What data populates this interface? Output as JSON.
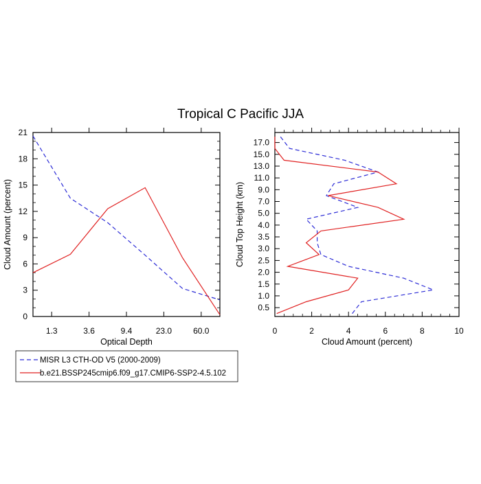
{
  "title": "Tropical C Pacific JJA",
  "colors": {
    "obs": "#2b2bd6",
    "model": "#e02020",
    "axis": "#000000"
  },
  "legend": {
    "entries": [
      {
        "label": "MISR L3 CTH-OD V5 (2000-2009)",
        "color": "#2b2bd6",
        "dash": "dashed"
      },
      {
        "label": "b.e21.BSSP245cmip6.f09_g17.CMIP6-SSP2-4.5.102",
        "color": "#e02020",
        "dash": "solid"
      }
    ]
  },
  "chart_data": [
    {
      "type": "line",
      "xlabel": "Optical Depth",
      "ylabel": "Cloud Amount (percent)",
      "categories": [
        "1.3",
        "3.6",
        "9.4",
        "23.0",
        "60.0"
      ],
      "x_index_range": [
        0,
        5
      ],
      "ylim": [
        0,
        21
      ],
      "yticks": [
        "0",
        "3",
        "6",
        "9",
        "12",
        "15",
        "18",
        "21"
      ],
      "series": [
        {
          "name": "MISR L3 CTH-OD V5 (2000-2009)",
          "style": "dashed",
          "color": "#2b2bd6",
          "x": [
            0,
            1,
            2,
            3,
            4,
            5
          ],
          "y": [
            20.6,
            13.5,
            10.7,
            7.0,
            3.2,
            1.9
          ]
        },
        {
          "name": "b.e21.BSSP245cmip6.f09_g17.CMIP6-SSP2-4.5.102",
          "style": "solid",
          "color": "#e02020",
          "x": [
            0,
            1,
            2,
            3,
            4,
            5
          ],
          "y": [
            5.0,
            7.1,
            12.3,
            14.7,
            6.7,
            0.2
          ]
        }
      ]
    },
    {
      "type": "line",
      "xlabel": "Cloud Amount (percent)",
      "ylabel": "Cloud Top Height (km)",
      "xlim": [
        0,
        10
      ],
      "xticks": [
        "0",
        "2",
        "4",
        "6",
        "8",
        "10"
      ],
      "ylevels": [
        "0.5",
        "1.0",
        "1.5",
        "2.0",
        "2.5",
        "3.0",
        "3.5",
        "4.0",
        "5.0",
        "7.0",
        "9.0",
        "11.0",
        "13.0",
        "15.0",
        "17.0"
      ],
      "series": [
        {
          "name": "MISR L3 CTH-OD V5 (2000-2009)",
          "style": "dashed",
          "color": "#2b2bd6",
          "level_index": [
            -0.5,
            0.5,
            1.5,
            2.5,
            3.5,
            4.5,
            5.5,
            6.5,
            7.5,
            8.5,
            9.5,
            10.5,
            11.5,
            12.5,
            13.5,
            14.5
          ],
          "cloud_amount": [
            4.2,
            4.7,
            8.6,
            7.0,
            4.0,
            2.5,
            2.3,
            2.3,
            1.7,
            4.5,
            2.8,
            3.2,
            5.6,
            3.8,
            0.8,
            0.3
          ]
        },
        {
          "name": "b.e21.BSSP245cmip6.f09_g17.CMIP6-SSP2-4.5.102",
          "style": "solid",
          "color": "#e02020",
          "level_index": [
            -0.5,
            0.5,
            1.5,
            2.5,
            3.5,
            4.5,
            5.5,
            6.5,
            7.5,
            8.5,
            9.5,
            10.5,
            11.5,
            12.5,
            13.5,
            14.5
          ],
          "cloud_amount": [
            0.1,
            1.7,
            4.0,
            4.5,
            0.7,
            2.4,
            1.7,
            2.5,
            7.0,
            5.6,
            2.9,
            6.6,
            5.6,
            0.5,
            0.0,
            0.0
          ]
        }
      ]
    }
  ]
}
